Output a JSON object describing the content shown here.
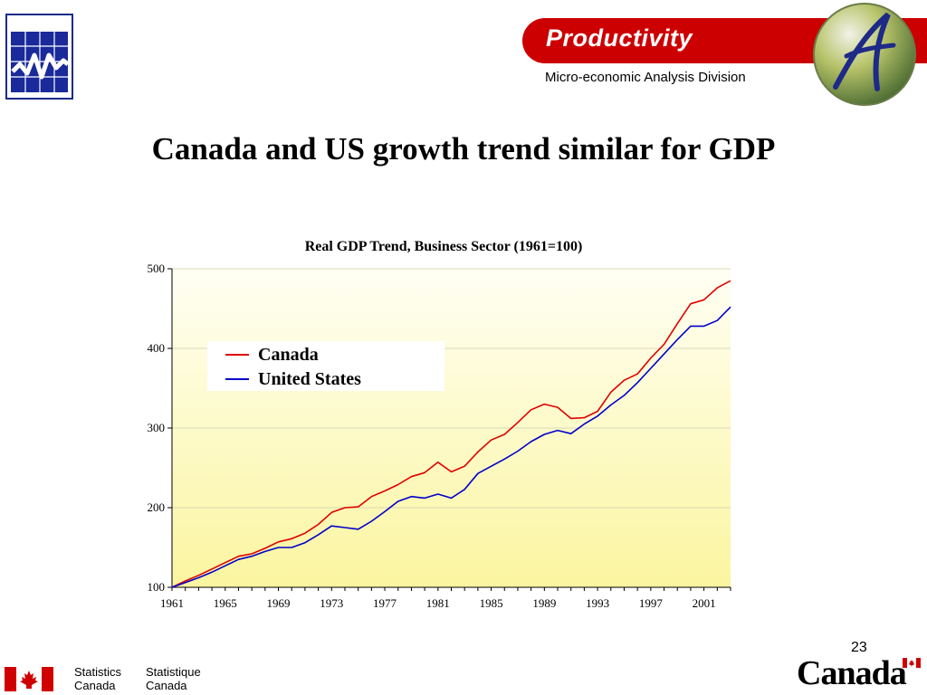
{
  "header": {
    "banner_title": "Productivity",
    "division": "Micro-economic Analysis Division"
  },
  "slide": {
    "title": "Canada and US growth trend similar for GDP",
    "page_number": "23"
  },
  "footer": {
    "statcan_en": [
      "Statistics",
      "Canada"
    ],
    "statcan_fr": [
      "Statistique",
      "Canada"
    ],
    "wordmark": "Canada"
  },
  "colors": {
    "brand_red": "#cc0000",
    "canada_series": "#e00000",
    "us_series": "#0000cc",
    "plot_top": "#fffff4",
    "plot_bottom": "#fbf5a0"
  },
  "chart_data": {
    "type": "line",
    "title": "Real GDP Trend, Business Sector (1961=100)",
    "xlabel": "",
    "ylabel": "",
    "x": [
      1961,
      1962,
      1963,
      1964,
      1965,
      1966,
      1967,
      1968,
      1969,
      1970,
      1971,
      1972,
      1973,
      1974,
      1975,
      1976,
      1977,
      1978,
      1979,
      1980,
      1981,
      1982,
      1983,
      1984,
      1985,
      1986,
      1987,
      1988,
      1989,
      1990,
      1991,
      1992,
      1993,
      1994,
      1995,
      1996,
      1997,
      1998,
      1999,
      2000,
      2001,
      2002,
      2003
    ],
    "xlim": [
      1961,
      2003
    ],
    "x_ticks": [
      "1961",
      "1965",
      "1969",
      "1973",
      "1977",
      "1981",
      "1985",
      "1989",
      "1993",
      "1997",
      "2001"
    ],
    "ylim": [
      100,
      500
    ],
    "y_ticks": [
      "100",
      "200",
      "300",
      "400",
      "500"
    ],
    "grid": "horizontal",
    "legend_position": "upper-left",
    "series": [
      {
        "name": "Canada",
        "color": "#e00000",
        "values": [
          100,
          108,
          115,
          123,
          131,
          139,
          142,
          149,
          157,
          161,
          168,
          179,
          194,
          200,
          201,
          214,
          221,
          229,
          239,
          244,
          257,
          245,
          252,
          270,
          285,
          292,
          307,
          323,
          330,
          326,
          312,
          313,
          321,
          345,
          360,
          368,
          388,
          405,
          431,
          456,
          461,
          476,
          485
        ]
      },
      {
        "name": "United States",
        "color": "#0000cc",
        "values": [
          100,
          106,
          112,
          119,
          127,
          135,
          139,
          145,
          150,
          150,
          156,
          166,
          177,
          175,
          173,
          183,
          195,
          208,
          214,
          212,
          217,
          212,
          223,
          243,
          252,
          261,
          271,
          283,
          292,
          297,
          293,
          305,
          315,
          329,
          341,
          357,
          375,
          393,
          411,
          428,
          428,
          435,
          452
        ]
      }
    ]
  }
}
